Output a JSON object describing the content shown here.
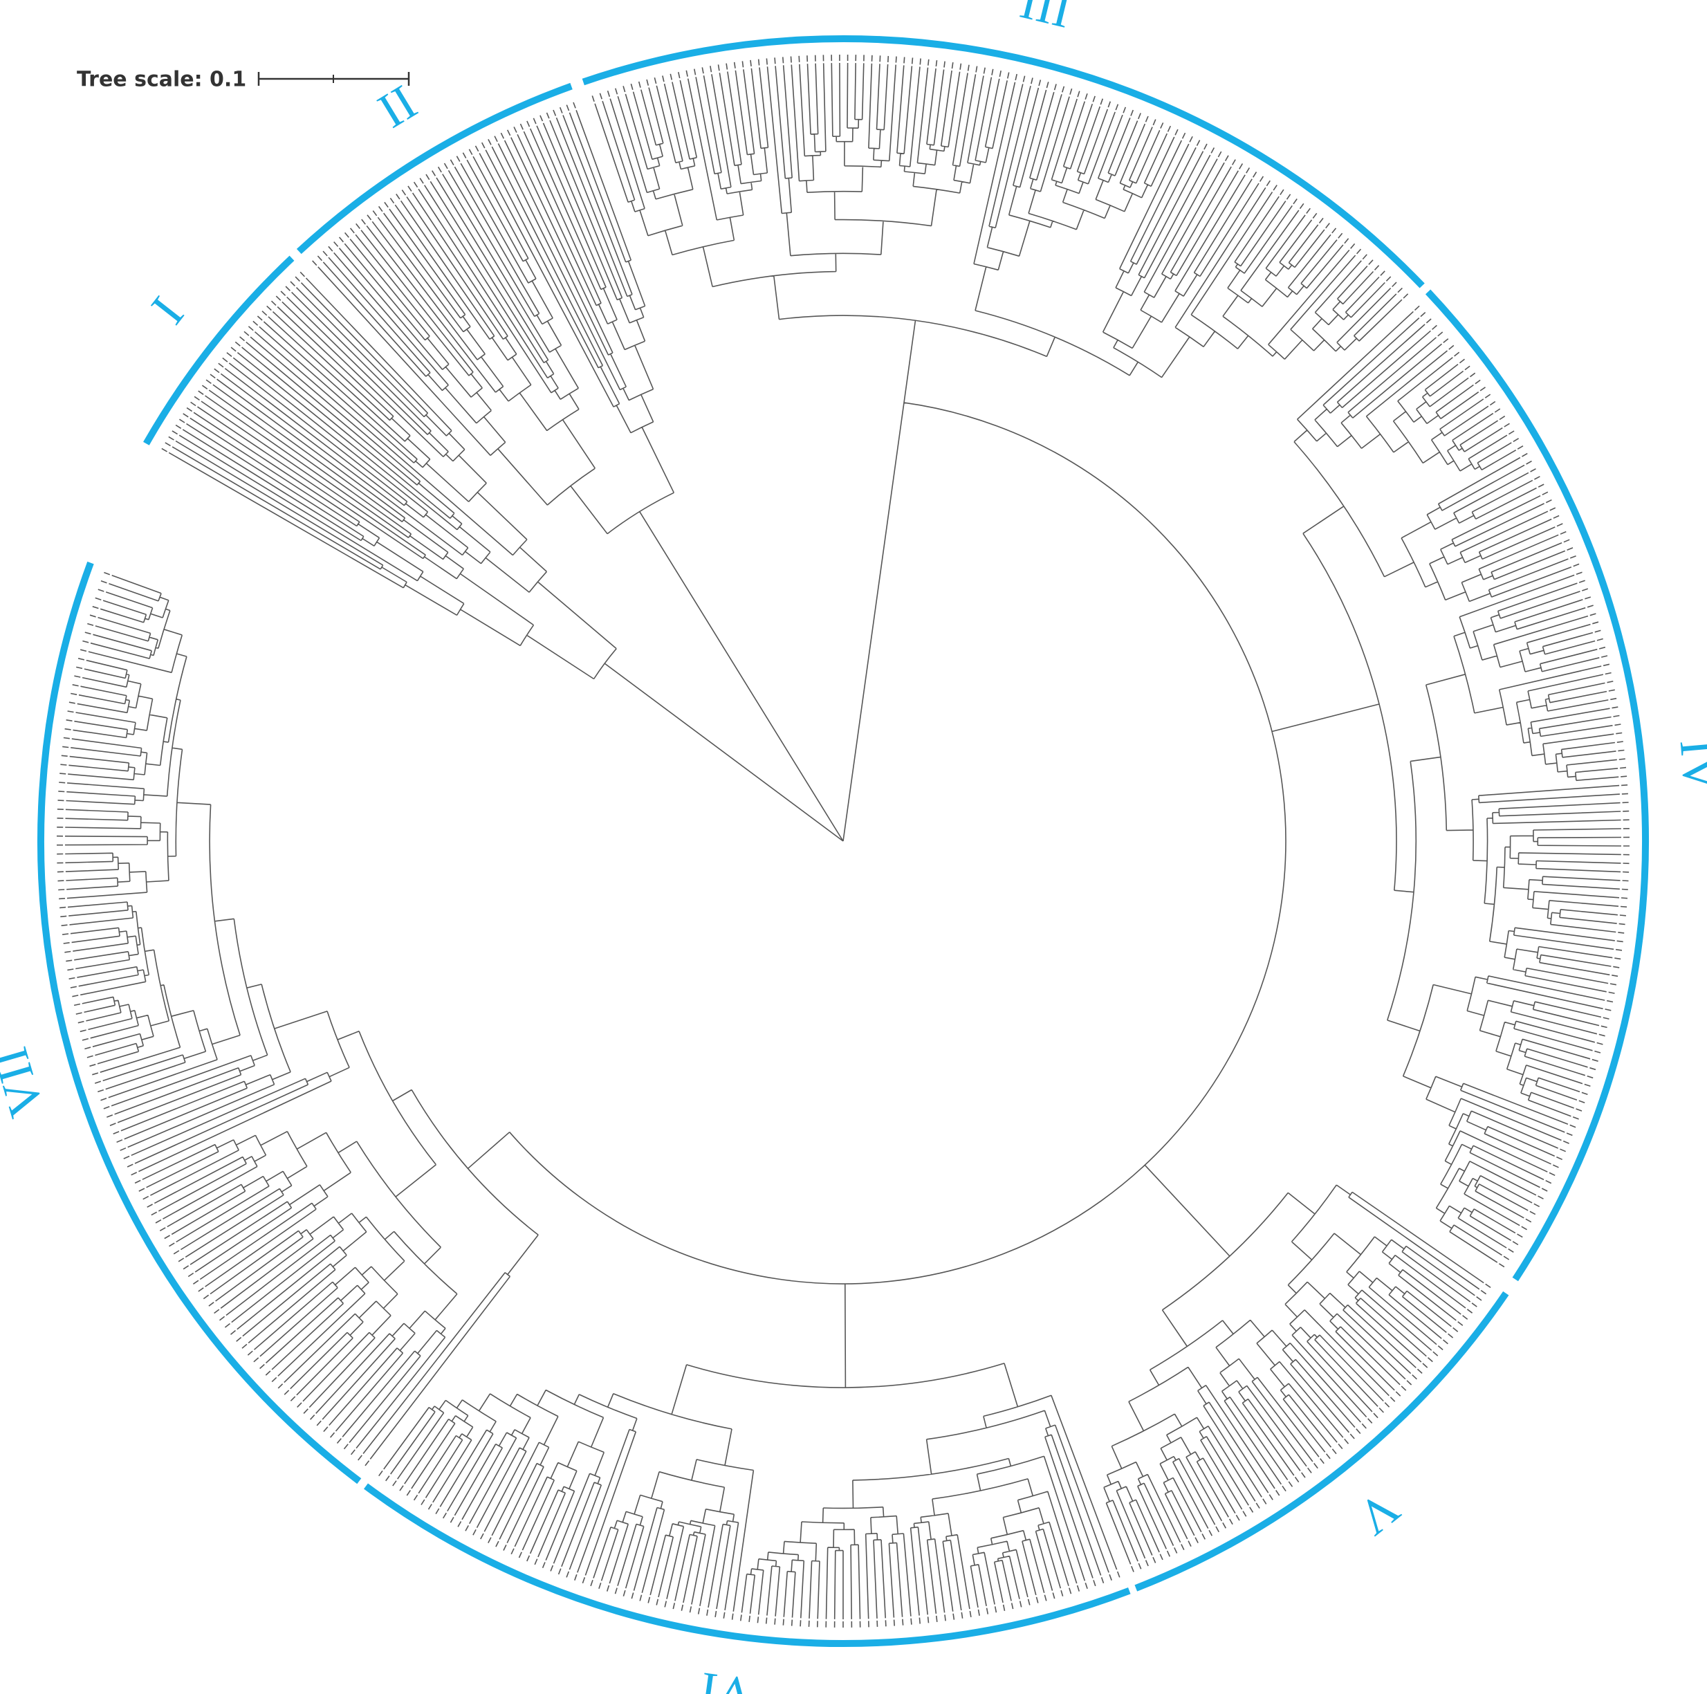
{
  "tree_scale": {
    "label": "Tree scale: 0.1"
  },
  "clades": [
    {
      "label": "I"
    },
    {
      "label": "II"
    },
    {
      "label": "III"
    },
    {
      "label": "IV"
    },
    {
      "label": "V"
    },
    {
      "label": "VI"
    },
    {
      "label": "VII"
    }
  ]
}
